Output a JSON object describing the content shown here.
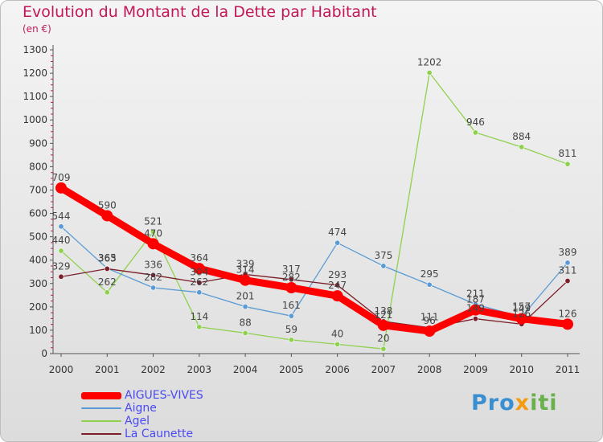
{
  "title": "Evolution du Montant de la Dette par Habitant",
  "subtitle": "(en €)",
  "logo_parts": [
    "Pro",
    "x",
    "iti"
  ],
  "chart_data": {
    "type": "line",
    "title": "Evolution du Montant de la Dette par Habitant",
    "subtitle": "(en €)",
    "xlabel": "",
    "ylabel": "",
    "x": [
      "2000",
      "2001",
      "2002",
      "2003",
      "2004",
      "2005",
      "2006",
      "2007",
      "2008",
      "2009",
      "2010",
      "2011"
    ],
    "y_ticks": [
      "0",
      "100",
      "200",
      "300",
      "400",
      "500",
      "600",
      "700",
      "800",
      "900",
      "1000",
      "1100",
      "1200",
      "1300"
    ],
    "ylim": [
      0,
      1300
    ],
    "grid": false,
    "legend_position": "bottom-left",
    "series": [
      {
        "name": "AIGUES-VIVES",
        "color": "#ff0000",
        "values": [
          709,
          590,
          470,
          364,
          314,
          282,
          247,
          121,
          96,
          187,
          149,
          126
        ],
        "labels": [
          "709",
          "590",
          "470",
          "364",
          "314",
          "282",
          "247",
          "121",
          "96",
          "187",
          "149",
          "126"
        ]
      },
      {
        "name": "Aigne",
        "color": "#5b9bd5",
        "values": [
          544,
          365,
          282,
          262,
          201,
          161,
          474,
          375,
          295,
          211,
          157,
          389
        ],
        "labels": [
          "544",
          "365",
          "282",
          "262",
          "201",
          "161",
          "474",
          "375",
          "295",
          "211",
          "157",
          "389"
        ]
      },
      {
        "name": "Agel",
        "color": "#8fd14f",
        "values": [
          440,
          262,
          521,
          114,
          88,
          59,
          40,
          20,
          1202,
          946,
          884,
          811
        ],
        "labels": [
          "440",
          "262",
          "521",
          "114",
          "88",
          "59",
          "40",
          "20",
          "1202",
          "946",
          "884",
          "811"
        ]
      },
      {
        "name": "La Caunette",
        "color": "#7b1e2a",
        "values": [
          329,
          363,
          336,
          304,
          339,
          317,
          293,
          138,
          111,
          149,
          126,
          311
        ],
        "labels": [
          "329",
          "363",
          "336",
          "304",
          "339",
          "317",
          "293",
          "138",
          "111",
          "149",
          "126",
          "311"
        ]
      }
    ]
  }
}
